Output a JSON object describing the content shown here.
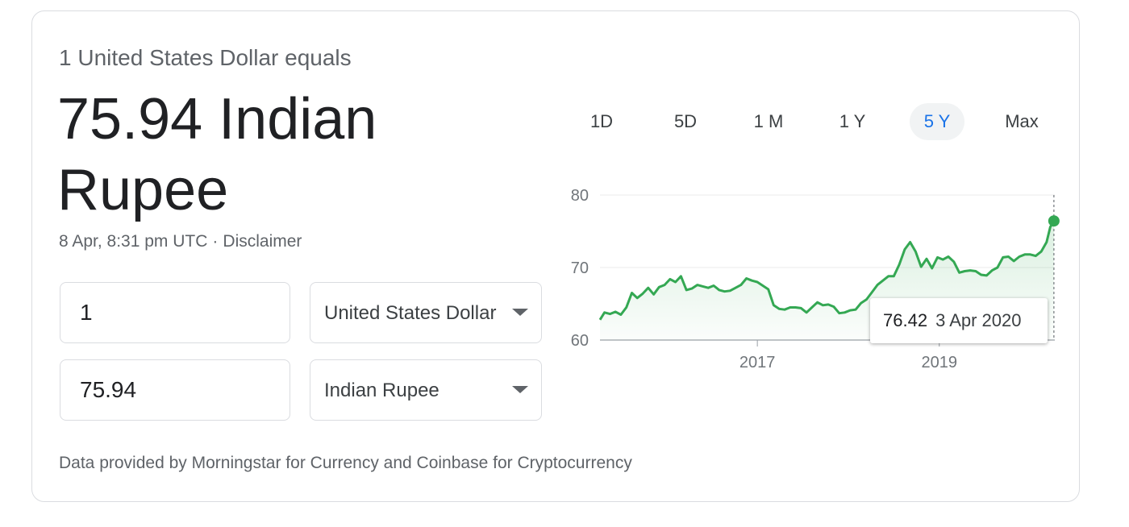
{
  "converter": {
    "equals_line": "1 United States Dollar equals",
    "result_text": "75.94 Indian Rupee",
    "timestamp": "8 Apr, 8:31 pm UTC",
    "separator": "·",
    "disclaimer": "Disclaimer",
    "from_amount": "1",
    "from_currency": "United States Dollar",
    "to_amount": "75.94",
    "to_currency": "Indian Rupee",
    "footer": "Data provided by Morningstar for Currency and Coinbase for Cryptocurrency"
  },
  "ranges": {
    "items": [
      "1D",
      "5D",
      "1 M",
      "1 Y",
      "5 Y",
      "Max"
    ],
    "active": "5 Y"
  },
  "colors": {
    "line": "#34a853",
    "active_tab_text": "#1a73e8",
    "active_tab_bg": "#f1f3f4"
  },
  "chart_data": {
    "type": "area",
    "title": "",
    "xlabel": "",
    "ylabel": "",
    "y_ticks": [
      60,
      70,
      80
    ],
    "x_tick_labels": [
      {
        "label": "2017",
        "x": 2017.0
      },
      {
        "label": "2019",
        "x": 2019.0
      }
    ],
    "ylim": [
      60,
      80
    ],
    "xlim": [
      2015.27,
      2020.27
    ],
    "grid": true,
    "tooltip": {
      "value": "76.42",
      "date": "3 Apr 2020"
    },
    "highlight_point": {
      "x": 2020.26,
      "y": 76.42
    },
    "series": [
      {
        "x": [
          2015.27,
          2015.32,
          2015.38,
          2015.44,
          2015.5,
          2015.56,
          2015.62,
          2015.68,
          2015.74,
          2015.8,
          2015.86,
          2015.92,
          2015.98,
          2016.04,
          2016.1,
          2016.16,
          2016.22,
          2016.28,
          2016.34,
          2016.4,
          2016.46,
          2016.52,
          2016.58,
          2016.64,
          2016.7,
          2016.76,
          2016.82,
          2016.88,
          2016.94,
          2017.0,
          2017.06,
          2017.12,
          2017.18,
          2017.24,
          2017.3,
          2017.36,
          2017.42,
          2017.48,
          2017.54,
          2017.6,
          2017.66,
          2017.72,
          2017.78,
          2017.84,
          2017.9,
          2017.96,
          2018.02,
          2018.08,
          2018.14,
          2018.2,
          2018.26,
          2018.32,
          2018.38,
          2018.44,
          2018.5,
          2018.56,
          2018.62,
          2018.68,
          2018.74,
          2018.8,
          2018.86,
          2018.92,
          2018.98,
          2019.04,
          2019.1,
          2019.16,
          2019.22,
          2019.28,
          2019.34,
          2019.4,
          2019.46,
          2019.52,
          2019.58,
          2019.64,
          2019.7,
          2019.76,
          2019.82,
          2019.88,
          2019.94,
          2020.0,
          2020.06,
          2020.12,
          2020.18,
          2020.22,
          2020.26
        ],
        "y": [
          62.8,
          63.8,
          63.6,
          63.9,
          63.5,
          64.5,
          66.5,
          65.8,
          66.4,
          67.2,
          66.3,
          67.3,
          67.6,
          68.4,
          68.0,
          68.8,
          66.9,
          67.1,
          67.6,
          67.4,
          67.2,
          67.5,
          66.9,
          66.7,
          66.8,
          67.2,
          67.6,
          68.5,
          68.2,
          68.0,
          67.5,
          67.0,
          64.8,
          64.3,
          64.2,
          64.5,
          64.5,
          64.4,
          63.8,
          64.5,
          65.2,
          64.8,
          64.9,
          64.6,
          63.7,
          63.8,
          64.1,
          64.2,
          65.1,
          65.6,
          66.6,
          67.6,
          68.2,
          68.8,
          68.8,
          70.4,
          72.5,
          73.5,
          72.2,
          70.1,
          71.2,
          69.9,
          71.4,
          71.1,
          71.5,
          70.8,
          69.3,
          69.5,
          69.6,
          69.5,
          69.0,
          68.9,
          69.6,
          70.0,
          71.4,
          71.5,
          70.9,
          71.5,
          71.8,
          71.8,
          71.6,
          72.2,
          73.5,
          75.6,
          76.42
        ]
      }
    ]
  }
}
